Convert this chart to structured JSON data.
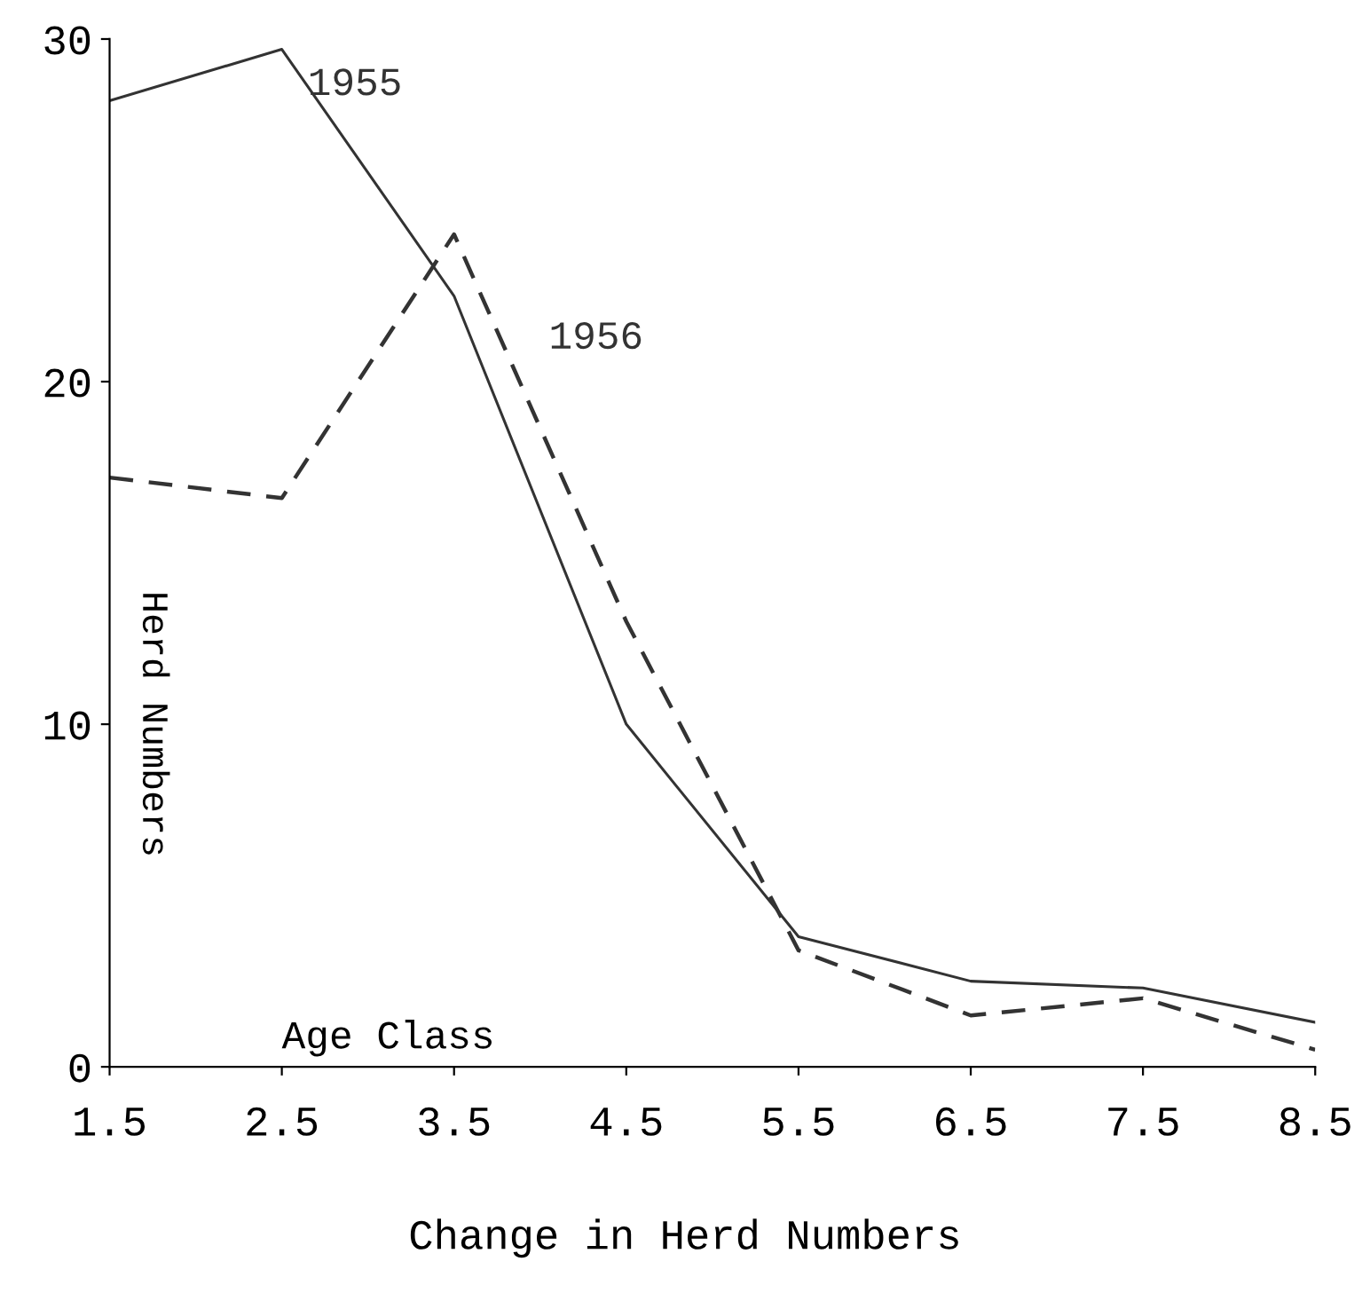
{
  "chart_data": {
    "type": "line",
    "title": "Change in Herd Numbers",
    "xlabel": "Age Class",
    "ylabel": "Herd Numbers",
    "categories": [
      "1.5",
      "2.5",
      "3.5",
      "4.5",
      "5.5",
      "6.5",
      "7.5",
      "8.5"
    ],
    "series": [
      {
        "name": "1955",
        "color": "#333333",
        "line_style": "solid",
        "values": [
          28.2,
          29.7,
          22.5,
          10,
          3.8,
          2.5,
          2.3,
          1.3
        ]
      },
      {
        "name": "1956",
        "color": "#333333",
        "line_style": "dashed",
        "values": [
          17.2,
          16.6,
          24.3,
          13,
          3.4,
          1.5,
          2,
          0.5
        ]
      }
    ],
    "ylim": [
      0,
      30
    ],
    "yticks": [
      0,
      10,
      20,
      30
    ],
    "grid": false,
    "legend": false,
    "marker": "none"
  }
}
